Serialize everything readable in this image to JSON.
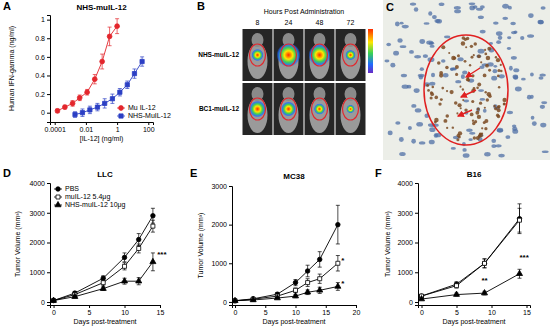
{
  "chart_data": [
    {
      "panel": "A",
      "type": "line",
      "title": "NHS-muIL-12",
      "x_label": "[IL-12] (ng/ml)",
      "y_label": "Human IFN-gamma (ng/ml)",
      "log": "x",
      "xlim": [
        5e-05,
        200
      ],
      "xticks": [
        0.0001,
        0.01,
        1,
        100
      ],
      "ylim": [
        -0.1,
        1.05
      ],
      "yticks": [
        0,
        0.2,
        0.4,
        0.6,
        0.8,
        1
      ],
      "legend": "lower right",
      "series": [
        {
          "name": "Mu IL-12",
          "color": "#e3262c",
          "marker": "circle",
          "x": [
            0.00015,
            0.00045,
            0.0014,
            0.004,
            0.012,
            0.037,
            0.11,
            0.33,
            1
          ],
          "values": [
            0.02,
            0.06,
            0.1,
            0.16,
            0.22,
            0.36,
            0.55,
            0.82,
            0.93
          ],
          "errors": [
            0.02,
            0.02,
            0.03,
            0.03,
            0.03,
            0.05,
            0.08,
            0.1,
            0.08
          ]
        },
        {
          "name": "NHS-MuIL-12",
          "color": "#2b3fc4",
          "marker": "square",
          "x": [
            0.002,
            0.006,
            0.018,
            0.055,
            0.16,
            0.5,
            1.5,
            4.5,
            13,
            40
          ],
          "values": [
            -0.02,
            0,
            0.03,
            0.06,
            0.1,
            0.15,
            0.22,
            0.3,
            0.42,
            0.55
          ],
          "errors": [
            0.03,
            0.04,
            0.04,
            0.04,
            0.05,
            0.05,
            0.04,
            0.04,
            0.05,
            0.05
          ]
        }
      ]
    },
    {
      "panel": "D",
      "type": "line",
      "title": "LLC",
      "x_label": "Days post-treatment",
      "y_label": "Tumor Volume (mm³)",
      "xlim": [
        -0.5,
        15
      ],
      "xticks": [
        0,
        5,
        10,
        15
      ],
      "ylim": [
        -100,
        4000
      ],
      "yticks": [
        0,
        1000,
        2000,
        3000,
        4000
      ],
      "legend": "upper left",
      "series": [
        {
          "name": "PBS",
          "color": "#000000",
          "marker": "circle",
          "x": [
            0,
            3,
            7,
            10,
            12,
            14
          ],
          "values": [
            50,
            300,
            800,
            1500,
            2100,
            2900
          ],
          "errors": [
            20,
            50,
            80,
            150,
            200,
            250
          ]
        },
        {
          "name": "muIL-12 5.4μg",
          "color": "#000000",
          "marker": "open-square",
          "x": [
            0,
            3,
            7,
            10,
            12,
            14
          ],
          "values": [
            50,
            250,
            650,
            1200,
            1800,
            2550
          ],
          "errors": [
            20,
            40,
            80,
            120,
            150,
            200
          ]
        },
        {
          "name": "NHS-muIL-12 10μg",
          "color": "#000000",
          "marker": "triangle",
          "x": [
            0,
            3,
            7,
            10,
            12,
            14
          ],
          "values": [
            50,
            180,
            450,
            700,
            700,
            1350
          ],
          "errors": [
            20,
            40,
            60,
            100,
            120,
            300
          ]
        }
      ],
      "annotations": [
        {
          "text": "***",
          "x": 14.6,
          "y": 1500
        }
      ]
    },
    {
      "panel": "E",
      "type": "line",
      "title": "MC38",
      "x_label": "Days post-treatment",
      "y_label": "Tumor Volume (mm³)",
      "xlim": [
        -0.5,
        20
      ],
      "xticks": [
        0,
        5,
        10,
        15,
        20
      ],
      "ylim": [
        -80,
        3000
      ],
      "yticks": [
        0,
        1000,
        2000,
        3000
      ],
      "series": [
        {
          "color": "#000000",
          "marker": "circle",
          "x": [
            0,
            3,
            7,
            10,
            12,
            14,
            17
          ],
          "values": [
            30,
            80,
            200,
            500,
            800,
            1100,
            2000
          ],
          "errors": [
            10,
            20,
            40,
            80,
            150,
            200,
            500
          ]
        },
        {
          "color": "#000000",
          "marker": "open-square",
          "x": [
            0,
            3,
            7,
            10,
            12,
            14,
            17
          ],
          "values": [
            30,
            70,
            150,
            300,
            500,
            600,
            1000
          ],
          "errors": [
            10,
            20,
            30,
            60,
            100,
            120,
            200
          ]
        },
        {
          "color": "#000000",
          "marker": "triangle",
          "x": [
            0,
            3,
            7,
            10,
            12,
            14,
            17
          ],
          "values": [
            30,
            50,
            100,
            150,
            250,
            300,
            400
          ],
          "errors": [
            10,
            10,
            20,
            40,
            60,
            80,
            100
          ]
        }
      ],
      "annotations": [
        {
          "text": "*",
          "x": 17.8,
          "y": 1000
        },
        {
          "text": "*",
          "x": 17.8,
          "y": 400
        }
      ]
    },
    {
      "panel": "F",
      "type": "line",
      "title": "B16",
      "x_label": "Days post-treatment",
      "y_label": "Tumor Volume (mm³)",
      "xlim": [
        -0.5,
        15.5
      ],
      "xticks": [
        0,
        5,
        10,
        15
      ],
      "ylim": [
        -100,
        4000
      ],
      "yticks": [
        0,
        1000,
        2000,
        3000,
        4000
      ],
      "series": [
        {
          "color": "#000000",
          "marker": "circle",
          "x": [
            0,
            5,
            9,
            14
          ],
          "values": [
            200,
            600,
            1300,
            2800
          ],
          "errors": [
            30,
            80,
            150,
            500
          ]
        },
        {
          "color": "#000000",
          "marker": "open-square",
          "x": [
            0,
            5,
            9,
            14
          ],
          "values": [
            200,
            550,
            1300,
            2750
          ],
          "errors": [
            30,
            80,
            150,
            400
          ]
        },
        {
          "color": "#000000",
          "marker": "triangle",
          "x": [
            0,
            5,
            9,
            14
          ],
          "values": [
            100,
            250,
            300,
            950
          ],
          "errors": [
            20,
            50,
            60,
            150
          ]
        }
      ],
      "annotations": [
        {
          "text": "**",
          "x": 9,
          "y": 650
        },
        {
          "text": "***",
          "x": 14,
          "y": 1400
        }
      ]
    }
  ],
  "images": [
    {
      "panel": "B",
      "title": "Hours Post Administration",
      "columns": [
        "8",
        "24",
        "48",
        "72"
      ],
      "rows": [
        "NHS-muIL-12",
        "BC1-muIL-12"
      ]
    },
    {
      "panel": "C"
    }
  ]
}
